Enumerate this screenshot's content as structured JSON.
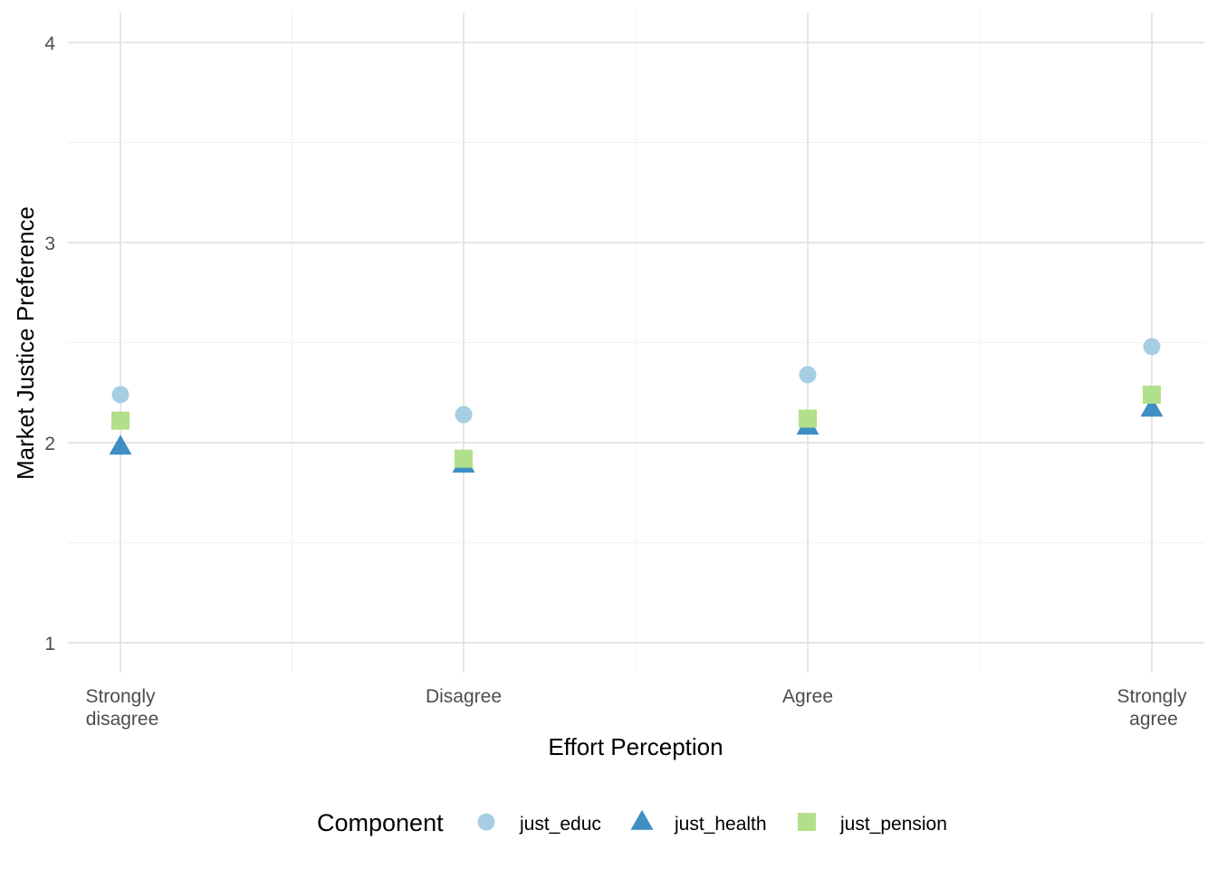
{
  "chart_data": {
    "type": "scatter",
    "categories": [
      "Strongly\ndisagree",
      "Disagree",
      "Agree",
      "Strongly\nagree"
    ],
    "x_tick_lines": [
      [
        "Strongly",
        "disagree"
      ],
      [
        "Disagree"
      ],
      [
        "Agree"
      ],
      [
        "Strongly",
        "agree"
      ]
    ],
    "series": [
      {
        "name": "just_educ",
        "shape": "circle",
        "color": "#a6cee3",
        "values": [
          2.24,
          2.14,
          2.34,
          2.48
        ]
      },
      {
        "name": "just_health",
        "shape": "triangle",
        "color": "#3f8fc4",
        "values": [
          1.98,
          1.89,
          2.08,
          2.17
        ]
      },
      {
        "name": "just_pension",
        "shape": "square",
        "color": "#b2df8a",
        "values": [
          2.11,
          1.92,
          2.12,
          2.24
        ]
      }
    ],
    "title": "",
    "xlabel": "Effort Perception",
    "ylabel": "Market Justice Preference",
    "ylim": [
      0.85,
      4.1
    ],
    "yticks": [
      1,
      2,
      3,
      4
    ],
    "y_minor_grid": [
      1.5,
      2.5,
      3.5
    ],
    "grid": true,
    "legend": {
      "title": "Component",
      "position": "bottom"
    }
  }
}
